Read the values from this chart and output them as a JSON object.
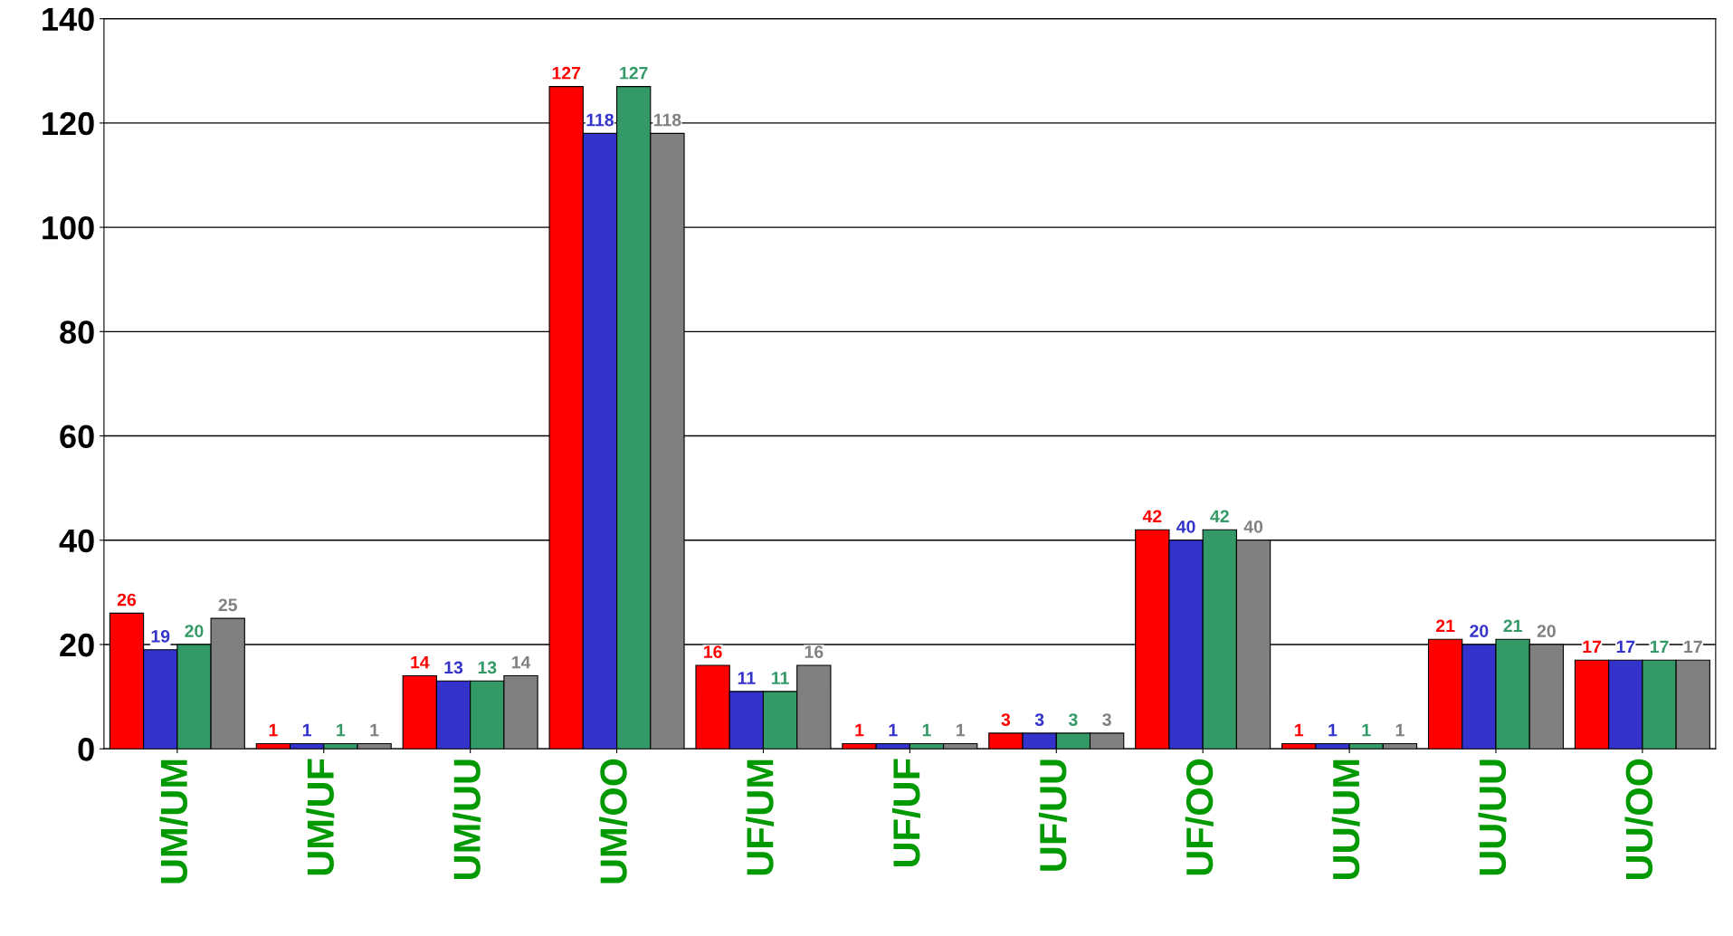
{
  "chart_data": {
    "type": "bar",
    "categories": [
      "UM/UM",
      "UM/UF",
      "UM/UU",
      "UM/OO",
      "UF/UM",
      "UF/UF",
      "UF/UU",
      "UF/OO",
      "UU/UM",
      "UU/UU",
      "UU/OO"
    ],
    "series": [
      {
        "color": "#ff0000",
        "values": [
          26,
          1,
          14,
          127,
          16,
          1,
          3,
          42,
          1,
          21,
          17
        ]
      },
      {
        "color": "#3333cc",
        "values": [
          19,
          1,
          13,
          118,
          11,
          1,
          3,
          40,
          1,
          20,
          17
        ]
      },
      {
        "color": "#339966",
        "values": [
          20,
          1,
          13,
          127,
          11,
          1,
          3,
          42,
          1,
          21,
          17
        ]
      },
      {
        "color": "#808080",
        "values": [
          25,
          1,
          14,
          118,
          16,
          1,
          3,
          40,
          1,
          20,
          17
        ]
      }
    ],
    "ylim": [
      0,
      140
    ],
    "yticks": [
      0,
      20,
      40,
      60,
      80,
      100,
      120,
      140
    ],
    "grid": "y",
    "data_labels": true
  }
}
